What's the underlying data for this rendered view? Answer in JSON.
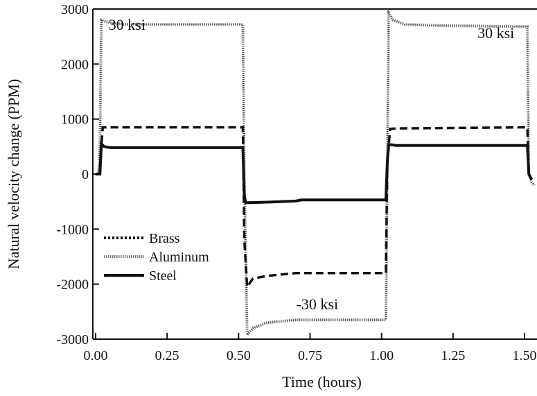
{
  "chart_data": {
    "type": "line",
    "title": "",
    "xlabel": "Time (hours)",
    "ylabel": "Natural velocity change (PPM)",
    "xlim": [
      0.0,
      1.55
    ],
    "ylim": [
      -3000,
      3000
    ],
    "xticks": [
      0.0,
      0.25,
      0.5,
      0.75,
      1.0,
      1.25,
      1.5
    ],
    "xtick_labels": [
      "0.00",
      "0.25",
      "0.50",
      "0.75",
      "1.00",
      "1.25",
      "1.50"
    ],
    "yticks": [
      -3000,
      -2000,
      -1000,
      0,
      1000,
      2000,
      3000
    ],
    "ytick_labels": [
      "-3000",
      "-2000",
      "-1000",
      "0",
      "1000",
      "2000",
      "3000"
    ],
    "grid": false,
    "legend_position": "lower-left",
    "annotations": [
      {
        "text": "30 ksi",
        "x": 0.11,
        "y": 2620
      },
      {
        "text": "-30 ksi",
        "x": 0.775,
        "y": -2460
      },
      {
        "text": "30 ksi",
        "x": 1.4,
        "y": 2470
      }
    ],
    "series": [
      {
        "name": "Brass",
        "style": "dashed",
        "x": [
          0.0,
          0.015,
          0.02,
          0.025,
          0.5,
          0.515,
          0.52,
          0.53,
          0.55,
          0.6,
          0.7,
          1.0,
          1.015,
          1.02,
          1.03,
          1.05,
          1.5,
          1.51,
          1.515,
          1.525
        ],
        "y": [
          0,
          0,
          500,
          850,
          850,
          850,
          -1200,
          -2050,
          -1900,
          -1850,
          -1800,
          -1800,
          -1800,
          200,
          820,
          830,
          850,
          850,
          0,
          -100
        ]
      },
      {
        "name": "Aluminum",
        "style": "hatched",
        "x": [
          0.0,
          0.01,
          0.015,
          0.02,
          0.03,
          0.05,
          0.1,
          0.5,
          0.515,
          0.52,
          0.53,
          0.55,
          0.6,
          0.7,
          1.0,
          1.015,
          1.02,
          1.025,
          1.04,
          1.08,
          1.2,
          1.5,
          1.51,
          1.515,
          1.525,
          1.535
        ],
        "y": [
          0,
          0,
          500,
          2800,
          2780,
          2750,
          2720,
          2720,
          2720,
          0,
          -2920,
          -2800,
          -2700,
          -2650,
          -2650,
          -2650,
          0,
          2930,
          2800,
          2720,
          2700,
          2680,
          2680,
          0,
          -150,
          -200
        ]
      },
      {
        "name": "Steel",
        "style": "solid",
        "x": [
          0.0,
          0.015,
          0.02,
          0.03,
          0.05,
          0.5,
          0.515,
          0.52,
          0.525,
          0.6,
          0.7,
          0.72,
          1.0,
          1.015,
          1.02,
          1.025,
          1.05,
          1.5,
          1.51,
          1.515,
          1.525
        ],
        "y": [
          0,
          0,
          550,
          500,
          480,
          480,
          480,
          -400,
          -520,
          -510,
          -490,
          -470,
          -470,
          -470,
          200,
          540,
          520,
          520,
          520,
          0,
          -100
        ]
      }
    ]
  },
  "colors": {
    "ink": "#111111",
    "aluminum": "#777777",
    "background": "#ffffff"
  }
}
